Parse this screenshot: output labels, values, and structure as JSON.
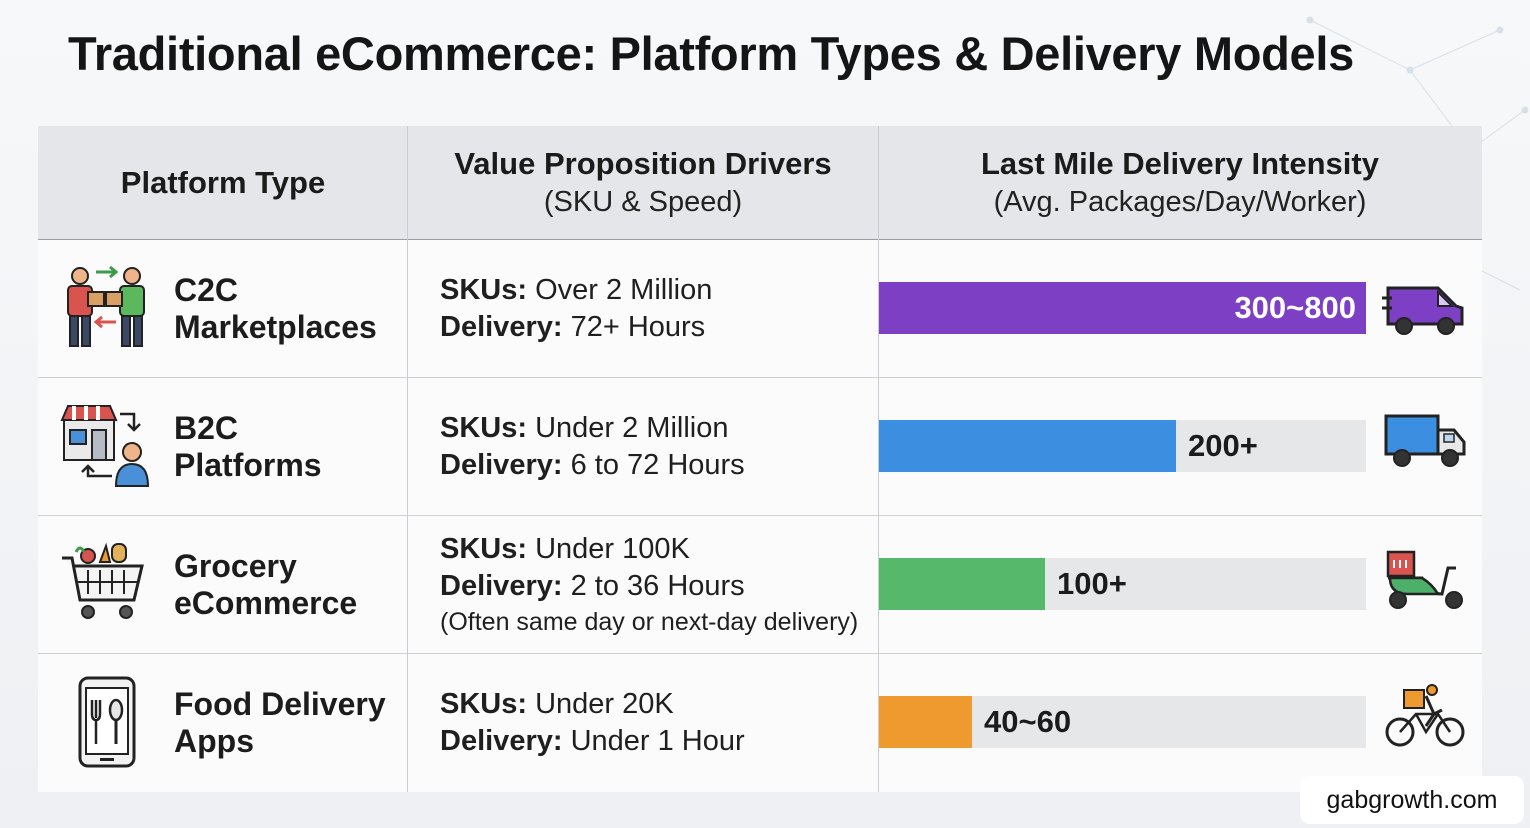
{
  "title": "Traditional eCommerce: Platform Types & Delivery Models",
  "columns": {
    "platform": "Platform Type",
    "value_main": "Value Proposition Drivers",
    "value_sub": "(SKU & Speed)",
    "delivery_main": "Last Mile Delivery Intensity",
    "delivery_sub": "(Avg. Packages/Day/Worker)"
  },
  "rows": [
    {
      "name_line1": "C2C",
      "name_line2": "Marketplaces",
      "sku_label": "SKUs:",
      "sku_value": " Over 2 Million",
      "delivery_label": "Delivery:",
      "delivery_value": " 72+ Hours",
      "note": "",
      "bar_label": "300~800",
      "platform_icon": "people-exchange-icon",
      "vehicle_icon": "van-icon",
      "color": "#7d3fc4"
    },
    {
      "name_line1": "B2C",
      "name_line2": "Platforms",
      "sku_label": "SKUs:",
      "sku_value": " Under 2 Million",
      "delivery_label": "Delivery:",
      "delivery_value": " 6 to 72 Hours",
      "note": "",
      "bar_label": "200+",
      "platform_icon": "store-customer-icon",
      "vehicle_icon": "truck-icon",
      "color": "#3c8ee0"
    },
    {
      "name_line1": "Grocery",
      "name_line2": "eCommerce",
      "sku_label": "SKUs:",
      "sku_value": " Under 100K",
      "delivery_label": "Delivery:",
      "delivery_value": " 2 to 36 Hours",
      "note": "(Often same day or next-day delivery)",
      "bar_label": "100+",
      "platform_icon": "grocery-cart-icon",
      "vehicle_icon": "scooter-icon",
      "color": "#55b86a"
    },
    {
      "name_line1": "Food Delivery",
      "name_line2": "Apps",
      "sku_label": "SKUs:",
      "sku_value": " Under 20K",
      "delivery_label": "Delivery:",
      "delivery_value": " Under 1 Hour",
      "note": "",
      "bar_label": "40~60",
      "platform_icon": "food-app-phone-icon",
      "vehicle_icon": "bicycle-courier-icon",
      "color": "#ef9a2f"
    }
  ],
  "chart_data": {
    "type": "bar",
    "orientation": "horizontal",
    "title": "Last Mile Delivery Intensity",
    "ylabel": "(Avg. Packages/Day/Worker)",
    "categories": [
      "C2C Marketplaces",
      "B2C Platforms",
      "Grocery eCommerce",
      "Food Delivery Apps"
    ],
    "values": [
      100,
      61,
      34,
      19
    ],
    "value_units": "percent of full bar",
    "data_labels": [
      "300~800",
      "200+",
      "100+",
      "40~60"
    ],
    "colors": [
      "#7d3fc4",
      "#3c8ee0",
      "#55b86a",
      "#ef9a2f"
    ],
    "xlim": [
      0,
      100
    ],
    "grid": false
  },
  "watermark": "gabgrowth.com"
}
